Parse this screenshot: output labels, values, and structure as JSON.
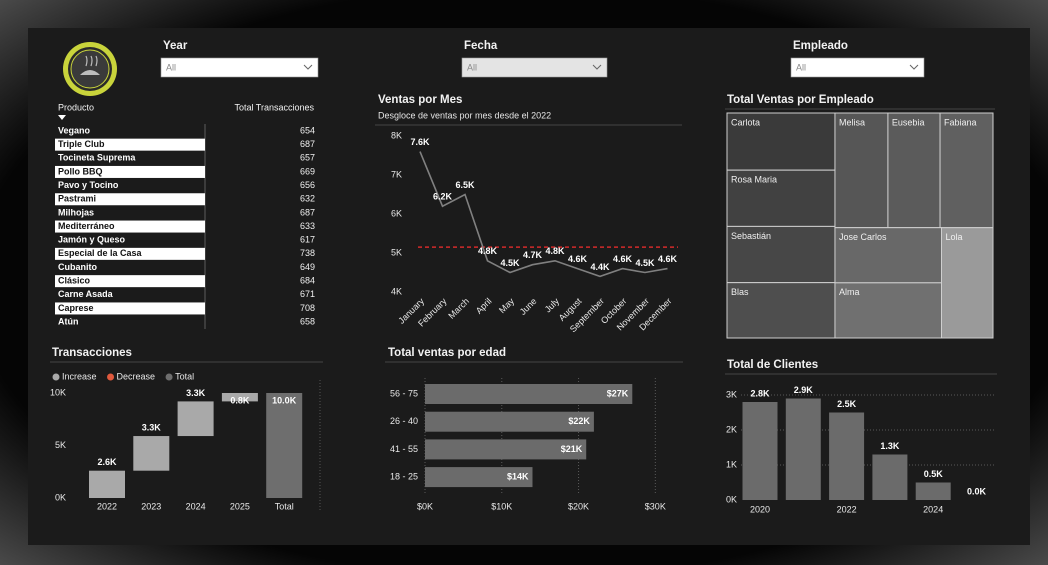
{
  "filters": [
    {
      "label": "Year",
      "value": "All"
    },
    {
      "label": "Fecha",
      "value": "All"
    },
    {
      "label": "Empleado",
      "value": "All"
    }
  ],
  "table": {
    "headers": [
      "Producto",
      "Total Transacciones"
    ],
    "rows": [
      [
        "Vegano",
        654
      ],
      [
        "Triple Club",
        687
      ],
      [
        "Tocineta Suprema",
        657
      ],
      [
        "Pollo BBQ",
        669
      ],
      [
        "Pavo y Tocino",
        656
      ],
      [
        "Pastrami",
        632
      ],
      [
        "Milhojas",
        687
      ],
      [
        "Mediterráneo",
        633
      ],
      [
        "Jamón y Queso",
        617
      ],
      [
        "Especial de la Casa",
        738
      ],
      [
        "Cubanito",
        649
      ],
      [
        "Clásico",
        684
      ],
      [
        "Carne Asada",
        671
      ],
      [
        "Caprese",
        708
      ],
      [
        "Atún",
        658
      ]
    ]
  },
  "chart_data": [
    {
      "type": "line",
      "title": "Ventas por Mes",
      "subtitle": "Desgloce de ventas por mes desde el 2022",
      "categories": [
        "January",
        "February",
        "March",
        "April",
        "May",
        "June",
        "July",
        "August",
        "September",
        "October",
        "November",
        "December"
      ],
      "values": [
        7600,
        6200,
        6500,
        4800,
        4500,
        4700,
        4800,
        4600,
        4400,
        4600,
        4500,
        4600
      ],
      "value_labels": [
        "7.6K",
        "6.2K",
        "6.5K",
        "4.8K",
        "4.5K",
        "4.7K",
        "4.8K",
        "4.6K",
        "4.4K",
        "4.6K",
        "4.5K",
        "4.6K"
      ],
      "color": "#808080",
      "average_line": {
        "value": 5150,
        "color": "#d42a2a"
      },
      "ylim": [
        4000,
        8000
      ],
      "yticks": [
        {
          "value": 4000,
          "label": "4K"
        },
        {
          "value": 5000,
          "label": "5K"
        },
        {
          "value": 6000,
          "label": "6K"
        },
        {
          "value": 7000,
          "label": "7K"
        },
        {
          "value": 8000,
          "label": "8K"
        }
      ]
    },
    {
      "type": "waterfall",
      "title": "Transacciones",
      "legend": [
        {
          "name": "Increase",
          "color": "#a9a9a9"
        },
        {
          "name": "Decrease",
          "color": "#e0593d"
        },
        {
          "name": "Total",
          "color": "#6e6e6e"
        }
      ],
      "categories": [
        "2022",
        "2023",
        "2024",
        "2025",
        "Total"
      ],
      "values": [
        2600,
        3300,
        3300,
        800,
        10000
      ],
      "value_labels": [
        "2.6K",
        "3.3K",
        "3.3K",
        "0.8K",
        "10.0K"
      ],
      "ylim": [
        0,
        10000
      ],
      "yticks": [
        {
          "value": 0,
          "label": "0K"
        },
        {
          "value": 5000,
          "label": "5K"
        },
        {
          "value": 10000,
          "label": "10K"
        }
      ]
    },
    {
      "type": "barh",
      "title": "Total ventas por edad",
      "categories": [
        "56 - 75",
        "26 - 40",
        "41 - 55",
        "18 - 25"
      ],
      "values": [
        27000,
        22000,
        21000,
        14000
      ],
      "value_labels": [
        "$27K",
        "$22K",
        "$21K",
        "$14K"
      ],
      "color": "#6b6b6b",
      "xlim": [
        0,
        31000
      ],
      "xticks": [
        {
          "value": 0,
          "label": "$0K"
        },
        {
          "value": 10000,
          "label": "$10K"
        },
        {
          "value": 20000,
          "label": "$20K"
        },
        {
          "value": 30000,
          "label": "$30K"
        }
      ],
      "grid": true
    },
    {
      "type": "bar",
      "title": "Total de Clientes",
      "categories": [
        "2020",
        null,
        "2022",
        null,
        "2024",
        null
      ],
      "values": [
        2800,
        2900,
        2500,
        1300,
        500,
        0
      ],
      "value_labels": [
        "2.8K",
        "2.9K",
        "2.5K",
        "1.3K",
        "0.5K",
        "0.0K"
      ],
      "color": "#6b6b6b",
      "ylim": [
        0,
        3000
      ],
      "yticks": [
        {
          "value": 0,
          "label": "0K"
        },
        {
          "value": 1000,
          "label": "1K"
        },
        {
          "value": 2000,
          "label": "2K"
        },
        {
          "value": 3000,
          "label": "3K"
        }
      ],
      "grid": true
    },
    {
      "type": "treemap",
      "title": "Total Ventas por Empleado",
      "categories": [
        "Carlota",
        "Rosa Maria",
        "Sebastián",
        "Blas",
        "Melisa",
        "Eusebia",
        "Fabiana",
        "Jose Carlos",
        "Alma",
        "Lola"
      ],
      "values": [
        6300,
        6200,
        6200,
        6100,
        6200,
        6100,
        6200,
        6000,
        6000,
        5800
      ],
      "colors": [
        "#3a3a3a",
        "#414141",
        "#474747",
        "#4e4e4e",
        "#565656",
        "#5b5b5b",
        "#606060",
        "#686868",
        "#707070",
        "#9a9a9a"
      ]
    }
  ]
}
